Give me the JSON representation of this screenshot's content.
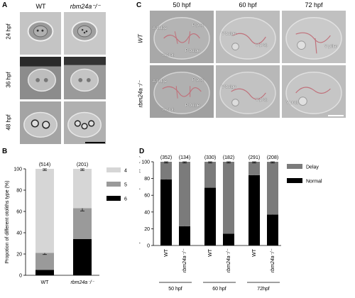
{
  "panels": {
    "A": {
      "letter": "A",
      "columns": [
        "WT",
        "rbm24a⁻/⁻"
      ],
      "rows": [
        "24 hpf",
        "36 hpf",
        "48 hpf"
      ]
    },
    "C": {
      "letter": "C",
      "columns": [
        "50 hpf",
        "60 hpf",
        "72 hpf"
      ],
      "rows": [
        "WT",
        "rbm24a⁻/⁻"
      ],
      "annotations": {
        "wt_50": [
          "A bulge",
          "P proj.",
          "A proj.",
          "P bulge"
        ],
        "wt_60": [
          "V bulge",
          "V proj."
        ],
        "wt_72": [
          "V pillar"
        ],
        "mut_50": [
          "A bulge",
          "P proj.",
          "A proj.",
          "P bulge"
        ],
        "mut_60": [
          "V bulge",
          "V proj."
        ],
        "mut_72": [
          "V proj."
        ]
      }
    },
    "B": {
      "letter": "B"
    },
    "D": {
      "letter": "D"
    }
  },
  "chart_data": [
    {
      "id": "B",
      "type": "bar",
      "stacked": true,
      "categories": [
        "WT",
        "rbm24a⁻/⁻"
      ],
      "counts": [
        "(514)",
        "(201)"
      ],
      "series": [
        {
          "name": "6",
          "color": "#000000",
          "values": [
            5,
            34
          ],
          "errors": [
            1.5,
            1.5
          ]
        },
        {
          "name": "5",
          "color": "#9a9a9a",
          "values": [
            16,
            29
          ],
          "errors": [
            1.5,
            2.5
          ]
        },
        {
          "name": "4",
          "color": "#d6d6d6",
          "values": [
            79,
            37
          ],
          "errors": [
            1.5,
            1.5
          ]
        }
      ],
      "ylabel": "Propotion of different otoliths type  (%)",
      "ylim": [
        0,
        100
      ],
      "yticks": [
        0,
        20,
        40,
        60,
        80,
        100
      ],
      "legend": "right"
    },
    {
      "id": "D",
      "type": "bar",
      "stacked": true,
      "categories": [
        "WT",
        "rbm24a⁻/⁻",
        "WT",
        "rbm24a⁻/⁻",
        "WT",
        "rbm24a⁻/⁻"
      ],
      "groups": [
        "50 hpf",
        "60 hpf",
        "72hpf"
      ],
      "counts": [
        "(352)",
        "(134)",
        "(330)",
        "(182)",
        "(291)",
        "(208)"
      ],
      "series": [
        {
          "name": "Normal",
          "color": "#000000",
          "values": [
            79,
            23,
            69,
            14,
            84,
            37
          ],
          "errors": [
            2.5,
            4,
            4,
            2.5,
            4,
            5
          ]
        },
        {
          "name": "Delay",
          "color": "#7b7b7b",
          "values": [
            21,
            77,
            31,
            86,
            16,
            63
          ],
          "errors": [
            1.5,
            1.5,
            1.5,
            1.5,
            1.5,
            1.5
          ]
        }
      ],
      "ylabel": "Propotion of different  development type (%)",
      "ylim": [
        0,
        100
      ],
      "yticks": [
        0,
        20,
        40,
        60,
        80,
        100
      ],
      "legend": "right"
    }
  ]
}
